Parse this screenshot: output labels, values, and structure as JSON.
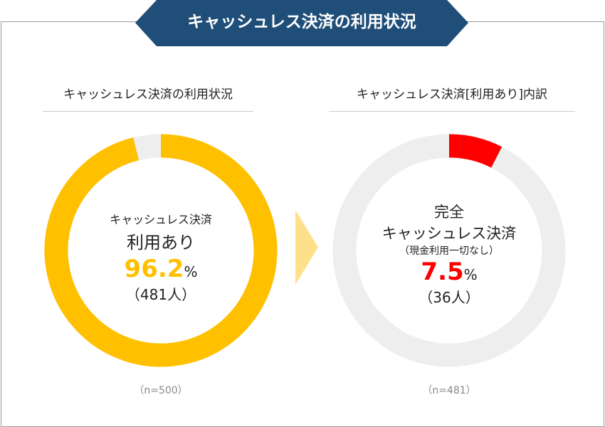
{
  "title": "キャッシュレス決済の利用状況",
  "colors": {
    "banner": "#1f4e79",
    "used": "#ffc000",
    "complete": "#ff0000",
    "rest": "#eeeeee",
    "arrow": "#ffe08a"
  },
  "chart_data": [
    {
      "type": "pie",
      "title": "キャッシュレス決済の利用状況",
      "center_label": [
        "キャッシュレス決済",
        "利用あり"
      ],
      "value_text": "96.2",
      "unit": "%",
      "count_text": "（481人）",
      "n_text": "（n=500）",
      "values": [
        96.2,
        3.8
      ],
      "slice_colors": [
        "#ffc000",
        "#eeeeee"
      ]
    },
    {
      "type": "pie",
      "title": "キャッシュレス決済[利用あり]内訳",
      "center_label": [
        "完全",
        "キャッシュレス決済",
        "（現金利用一切なし）"
      ],
      "value_text": "7.5",
      "unit": "%",
      "count_text": "（36人）",
      "n_text": "（n=481）",
      "values": [
        7.5,
        92.5
      ],
      "slice_colors": [
        "#ff0000",
        "#eeeeee"
      ]
    }
  ]
}
